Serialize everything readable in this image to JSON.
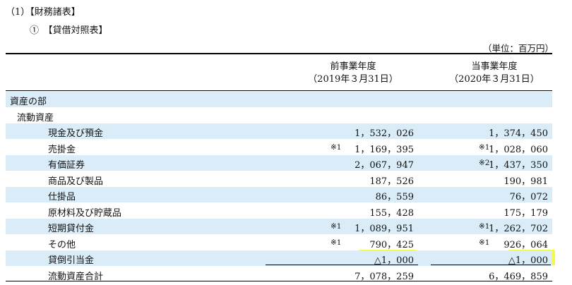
{
  "heading": "（1）【財務諸表】",
  "subheading": "①　【貸借対照表】",
  "unit": "（単位：百万円）",
  "columns": {
    "prev_title": "前事業年度",
    "prev_date": "（2019年３月31日）",
    "curr_title": "当事業年度",
    "curr_date": "（2020年３月31日）"
  },
  "rows": [
    {
      "label": "資産の部",
      "note_prev": "",
      "prev": "",
      "note_curr": "",
      "curr": ""
    },
    {
      "label": "流動資産",
      "note_prev": "",
      "prev": "",
      "note_curr": "",
      "curr": ""
    },
    {
      "label": "現金及び預金",
      "note_prev": "",
      "prev": "1，532，026",
      "note_curr": "",
      "curr": "1，374，450"
    },
    {
      "label": "売掛金",
      "note_prev": "※1",
      "prev": "1，169，395",
      "note_curr": "※1",
      "curr": "1，028，060"
    },
    {
      "label": "有価証券",
      "note_prev": "",
      "prev": "2，067，947",
      "note_curr": "※2",
      "curr": "1，437，350"
    },
    {
      "label": "商品及び製品",
      "note_prev": "",
      "prev": "187，526",
      "note_curr": "",
      "curr": "190，981"
    },
    {
      "label": "仕掛品",
      "note_prev": "",
      "prev": "86，559",
      "note_curr": "",
      "curr": "76，072"
    },
    {
      "label": "原材料及び貯蔵品",
      "note_prev": "",
      "prev": "155，428",
      "note_curr": "",
      "curr": "175，179"
    },
    {
      "label": "短期貸付金",
      "note_prev": "※1",
      "prev": "1，089，951",
      "note_curr": "※1",
      "curr": "1，262，702"
    },
    {
      "label": "その他",
      "note_prev": "※1",
      "prev": "790，425",
      "note_curr": "※1",
      "curr": "926，064"
    },
    {
      "label": "貸倒引当金",
      "note_prev": "",
      "prev": "△1，000",
      "note_curr": "",
      "curr": "△1，000"
    },
    {
      "label": "流動資産合計",
      "note_prev": "",
      "prev": "7，078，259",
      "note_curr": "",
      "curr": "6，469，859"
    }
  ]
}
